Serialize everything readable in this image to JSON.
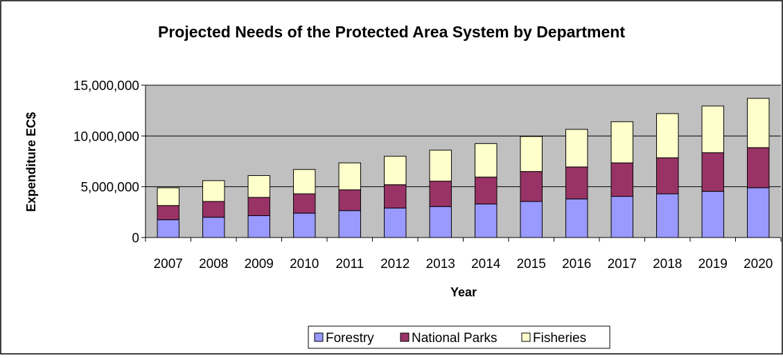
{
  "chart_data": {
    "type": "bar",
    "stacked": true,
    "title": "Projected Needs of the Protected Area System by Department",
    "xlabel": "Year",
    "ylabel": "Expenditure EC$",
    "ylim": [
      0,
      15000000
    ],
    "yticks": [
      0,
      5000000,
      10000000,
      15000000
    ],
    "ytick_labels": [
      "0",
      "5,000,000",
      "10,000,000",
      "15,000,000"
    ],
    "grid": true,
    "legend_position": "bottom",
    "categories": [
      "2007",
      "2008",
      "2009",
      "2010",
      "2011",
      "2012",
      "2013",
      "2014",
      "2015",
      "2016",
      "2017",
      "2018",
      "2019",
      "2020"
    ],
    "series": [
      {
        "name": "Forestry",
        "color": "#9999ff",
        "values": [
          1750000,
          2000000,
          2150000,
          2400000,
          2650000,
          2900000,
          3050000,
          3300000,
          3550000,
          3800000,
          4050000,
          4300000,
          4550000,
          4900000
        ]
      },
      {
        "name": "National Parks",
        "color": "#993366",
        "values": [
          1400000,
          1550000,
          1800000,
          1900000,
          2050000,
          2300000,
          2500000,
          2650000,
          2950000,
          3150000,
          3300000,
          3550000,
          3800000,
          3950000
        ]
      },
      {
        "name": "Fisheries",
        "color": "#ffffcc",
        "values": [
          1750000,
          2050000,
          2150000,
          2400000,
          2650000,
          2800000,
          3050000,
          3300000,
          3450000,
          3700000,
          4050000,
          4350000,
          4600000,
          4850000
        ]
      }
    ],
    "plot_background": "#c0c0c0"
  }
}
